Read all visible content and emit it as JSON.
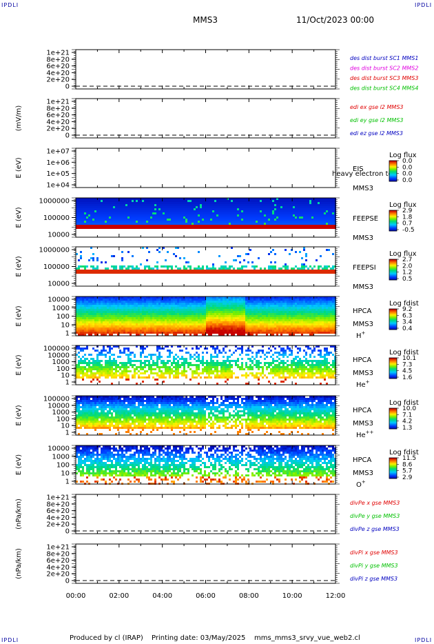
{
  "corner_label": "IPDLI",
  "header": {
    "title": "MMS3",
    "date": "11/Oct/2023 00:00"
  },
  "footer": {
    "produced_by": "Produced by cl (IRAP)",
    "printing_date": "Printing date: 03/May/2025",
    "script": "mms_mms3_srvy_vue_web2.cl"
  },
  "x_axis": {
    "ticks": [
      "00:00",
      "02:00",
      "04:00",
      "06:00",
      "08:00",
      "10:00",
      "12:00"
    ]
  },
  "colors": {
    "red": "#e00000",
    "magenta": "#e000e0",
    "green": "#00c000",
    "blue": "#0000c0"
  },
  "chart_data": [
    {
      "id": "p1",
      "type": "line",
      "ylabel": "",
      "yticks": [
        "1e+21",
        "8e+20",
        "6e+20",
        "4e+20",
        "2e+20",
        "0"
      ],
      "legend": [
        {
          "text": "des dist burst SC1 MMS1",
          "color": "blue"
        },
        {
          "text": "des dist burst SC2 MMS2",
          "color": "magenta"
        },
        {
          "text": "des dist burst SC3 MMS3",
          "color": "red"
        },
        {
          "text": "des dist burst SC4 MMS4",
          "color": "green"
        }
      ]
    },
    {
      "id": "p2",
      "type": "line",
      "ylabel": "(mV/m)",
      "yticks": [
        "1e+21",
        "8e+20",
        "6e+20",
        "4e+20",
        "2e+20",
        "0"
      ],
      "legend": [
        {
          "text": "edi ex gse l2 MMS3",
          "color": "red"
        },
        {
          "text": "edi ey gse l2 MMS3",
          "color": "green"
        },
        {
          "text": "edi ez gse l2 MMS3",
          "color": "blue"
        }
      ]
    },
    {
      "id": "p3",
      "type": "heatmap",
      "ylabel": "E (eV)",
      "yticks": [
        "1e+07",
        "1e+06",
        "1e+05",
        "1e+04"
      ],
      "labels": [
        "EIS",
        "MMS3"
      ],
      "overlay": "heavy electron to",
      "colorbar": {
        "title": "Log flux",
        "ticks": [
          "0.0",
          "0.0",
          "0.0",
          "0.0"
        ]
      }
    },
    {
      "id": "p4",
      "type": "heatmap",
      "ylabel": "E (eV)",
      "yticks": [
        "1000000",
        "100000",
        "10000"
      ],
      "labels": [
        "FEEPSE",
        "MMS3"
      ],
      "colorbar": {
        "title": "Log flux",
        "ticks": [
          "2.9",
          "1.8",
          "0.7",
          "-0.5"
        ]
      }
    },
    {
      "id": "p5",
      "type": "heatmap",
      "ylabel": "E (eV)",
      "yticks": [
        "1000000",
        "100000",
        "10000"
      ],
      "labels": [
        "FEEPSI",
        "MMS3"
      ],
      "colorbar": {
        "title": "Log flux",
        "ticks": [
          "2.7",
          "2.0",
          "1.2",
          "0.5"
        ]
      }
    },
    {
      "id": "p6",
      "type": "heatmap",
      "ylabel": "E (eV)",
      "yticks": [
        "10000",
        "1000",
        "100",
        "10",
        "1"
      ],
      "labels": [
        "HPCA",
        "MMS3"
      ],
      "species": "H",
      "charge": "+",
      "colorbar": {
        "title": "Log fdist",
        "ticks": [
          "9.2",
          "6.3",
          "3.4",
          "0.4"
        ]
      }
    },
    {
      "id": "p7",
      "type": "heatmap",
      "ylabel": "E (eV)",
      "yticks": [
        "100000",
        "10000",
        "1000",
        "100",
        "10",
        "1"
      ],
      "labels": [
        "HPCA",
        "MMS3"
      ],
      "species": "He",
      "charge": "+",
      "colorbar": {
        "title": "Log fdist",
        "ticks": [
          "10.1",
          "7.3",
          "4.5",
          "1.6"
        ]
      }
    },
    {
      "id": "p8",
      "type": "heatmap",
      "ylabel": "E (eV)",
      "yticks": [
        "100000",
        "10000",
        "1000",
        "100",
        "10",
        "1"
      ],
      "labels": [
        "HPCA",
        "MMS3"
      ],
      "species": "He",
      "charge": "++",
      "colorbar": {
        "title": "Log fdist",
        "ticks": [
          "10.0",
          "7.1",
          "4.2",
          "1.3"
        ]
      }
    },
    {
      "id": "p9",
      "type": "heatmap",
      "ylabel": "E (eV)",
      "yticks": [
        "10000",
        "1000",
        "100",
        "10",
        "1"
      ],
      "labels": [
        "HPCA",
        "MMS3"
      ],
      "species": "O",
      "charge": "+",
      "colorbar": {
        "title": "Log fdist",
        "ticks": [
          "11.5",
          "8.6",
          "5.7",
          "2.9"
        ]
      }
    },
    {
      "id": "p10",
      "type": "line",
      "ylabel": "(nPa/km)",
      "yticks": [
        "1e+21",
        "8e+20",
        "6e+20",
        "4e+20",
        "2e+20",
        "0"
      ],
      "legend": [
        {
          "text": "divPe x gse MMS3",
          "color": "red"
        },
        {
          "text": "divPe y gse MMS3",
          "color": "green"
        },
        {
          "text": "divPe z gse MMS3",
          "color": "blue"
        }
      ]
    },
    {
      "id": "p11",
      "type": "line",
      "ylabel": "(nPa/km)",
      "yticks": [
        "1e+21",
        "8e+20",
        "6e+20",
        "4e+20",
        "2e+20",
        "0"
      ],
      "legend": [
        {
          "text": "divPi x gse MMS3",
          "color": "red"
        },
        {
          "text": "divPi y gse MMS3",
          "color": "green"
        },
        {
          "text": "divPi z gse MMS3",
          "color": "blue"
        }
      ]
    }
  ]
}
